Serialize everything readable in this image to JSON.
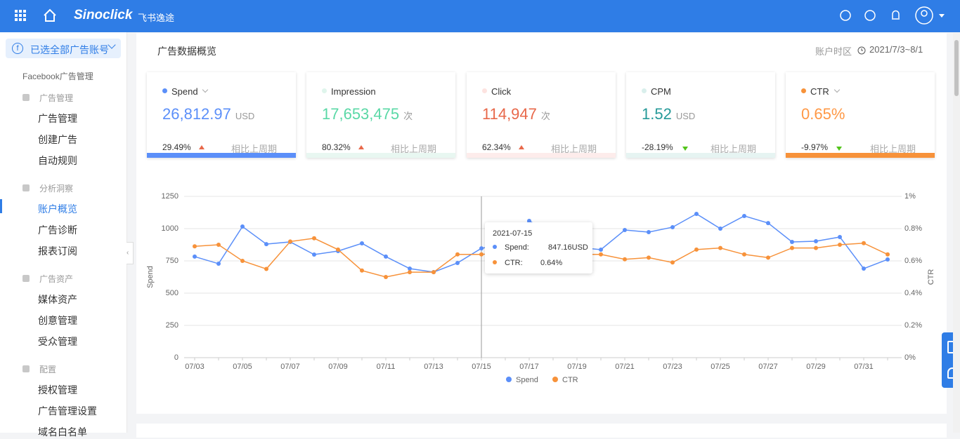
{
  "header": {
    "brand": "Sinoclick",
    "brand_cn": "飞书逸途"
  },
  "sidebar": {
    "account": "已选全部广告账号",
    "section": "Facebook广告管理",
    "groups": [
      {
        "title": "广告管理",
        "items": [
          "广告管理",
          "创建广告",
          "自动规则"
        ]
      },
      {
        "title": "分析洞察",
        "items": [
          "账户概览",
          "广告诊断",
          "报表订阅"
        ]
      },
      {
        "title": "广告资产",
        "items": [
          "媒体资产",
          "创意管理",
          "受众管理"
        ]
      },
      {
        "title": "配置",
        "items": [
          "授权管理",
          "广告管理设置",
          "域名白名单"
        ]
      }
    ]
  },
  "main": {
    "title": "广告数据概览",
    "timezone": "账户时区",
    "date_range": "2021/7/3~8/1"
  },
  "cards": [
    {
      "name": "Spend",
      "value": "26,812.97",
      "unit": "USD",
      "change": "29.49%",
      "compare": "相比上周期"
    },
    {
      "name": "Impression",
      "value": "17,653,475",
      "unit": "次",
      "change": "80.32%",
      "compare": "相比上周期"
    },
    {
      "name": "Click",
      "value": "114,947",
      "unit": "次",
      "change": "62.34%",
      "compare": "相比上周期"
    },
    {
      "name": "CPM",
      "value": "1.52",
      "unit": "USD",
      "change": "-28.19%",
      "compare": "相比上周期"
    },
    {
      "name": "CTR",
      "value": "0.65%",
      "change": "-9.97%",
      "compare": "相比上周期"
    }
  ],
  "chart_data": {
    "type": "line",
    "y_label": "Spend",
    "y2_label": "CTR",
    "categories": [
      "07/03",
      null,
      "07/05",
      null,
      "07/07",
      null,
      "07/09",
      null,
      "07/11",
      null,
      "07/13",
      null,
      "07/15",
      null,
      "07/17",
      null,
      "07/19",
      null,
      "07/21",
      null,
      "07/23",
      null,
      "07/25",
      null,
      "07/27",
      null,
      "07/29",
      null,
      "07/31",
      null
    ],
    "series": [
      {
        "name": "Spend",
        "color": "#5b8ff9",
        "values": [
          783,
          728,
          1016,
          880,
          897,
          799,
          826,
          886,
          783,
          690,
          663,
          734,
          847.16,
          880,
          1060,
          950,
          855,
          837,
          989,
          973,
          1011,
          1114,
          1000,
          1098,
          1043,
          897,
          902,
          935,
          690,
          761
        ]
      },
      {
        "name": "CTR",
        "color": "#f7923a",
        "axis": "y2",
        "values": [
          0.69,
          0.7,
          0.6,
          0.55,
          0.72,
          0.74,
          0.67,
          0.54,
          0.5,
          0.53,
          0.53,
          0.64,
          0.64,
          0.65,
          0.66,
          0.65,
          0.64,
          0.64,
          0.61,
          0.62,
          0.59,
          0.67,
          0.68,
          0.64,
          0.62,
          0.68,
          0.68,
          0.7,
          0.71,
          0.64
        ]
      }
    ],
    "ylim": [
      0,
      1250
    ],
    "yticks": [
      0,
      250,
      500,
      750,
      1000,
      1250
    ],
    "y2lim": [
      0,
      1
    ],
    "y2ticks": [
      {
        "value": 0,
        "label": "0%"
      },
      {
        "value": 0.2,
        "label": "0.2%"
      },
      {
        "value": 0.4,
        "label": "0.4%"
      },
      {
        "value": 0.6,
        "label": "0.6%"
      },
      {
        "value": 0.8,
        "label": "0.8%"
      },
      {
        "value": 1,
        "label": "1%"
      }
    ],
    "grid": true,
    "legend": "bottom",
    "tooltip": {
      "title": "2021-07-15",
      "rows": [
        {
          "label": "Spend:",
          "value": "847.16USD"
        },
        {
          "label": "CTR:",
          "value": "0.64%"
        }
      ]
    }
  }
}
